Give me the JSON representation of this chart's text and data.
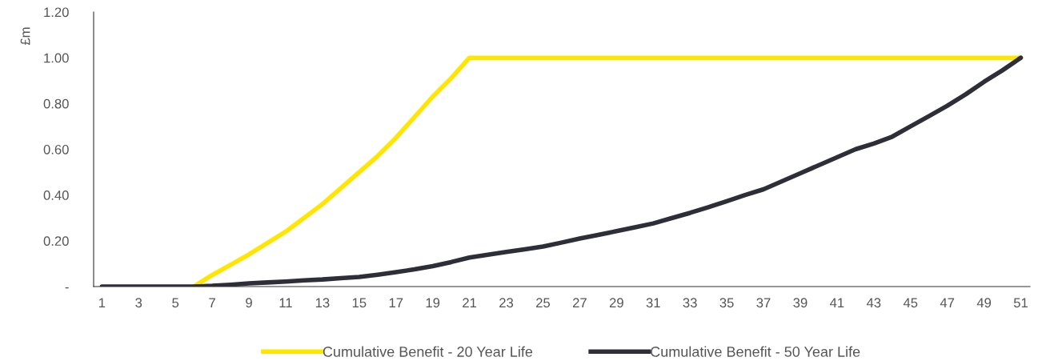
{
  "chart_data": {
    "type": "line",
    "ylabel": "£m",
    "categories": [
      "1",
      null,
      "3",
      null,
      "5",
      null,
      "7",
      null,
      "9",
      null,
      "11",
      null,
      "13",
      null,
      "15",
      null,
      "17",
      null,
      "19",
      null,
      "21",
      null,
      "23",
      null,
      "25",
      null,
      "27",
      null,
      "29",
      null,
      "31",
      null,
      "33",
      null,
      "35",
      null,
      "37",
      null,
      "39",
      null,
      "41",
      null,
      "43",
      null,
      "45",
      null,
      "47",
      null,
      "49",
      null,
      "51"
    ],
    "series": [
      {
        "name": "Cumulative Benefit - 20 Year Life",
        "color": "#ffe600",
        "values": [
          null,
          null,
          null,
          null,
          null,
          0,
          0.05,
          0.095,
          0.14,
          0.19,
          0.24,
          0.3,
          0.36,
          0.43,
          0.5,
          0.57,
          0.65,
          0.74,
          0.83,
          0.91,
          1.0,
          1.0,
          1.0,
          1.0,
          1.0,
          1.0,
          1.0,
          1.0,
          1.0,
          1.0,
          1.0,
          1.0,
          1.0,
          1.0,
          1.0,
          1.0,
          1.0,
          1.0,
          1.0,
          1.0,
          1.0,
          1.0,
          1.0,
          1.0,
          1.0,
          1.0,
          1.0,
          1.0,
          1.0,
          1.0,
          1.0
        ]
      },
      {
        "name": "Cumulative Benefit - 50 Year Life",
        "color": "#2e2e38",
        "values": [
          0,
          0,
          0,
          0,
          0,
          0,
          0.003,
          0.008,
          0.014,
          0.018,
          0.022,
          0.027,
          0.031,
          0.037,
          0.042,
          0.052,
          0.063,
          0.075,
          0.089,
          0.107,
          0.127,
          0.139,
          0.151,
          0.163,
          0.175,
          0.192,
          0.21,
          0.226,
          0.242,
          0.259,
          0.276,
          0.299,
          0.322,
          0.347,
          0.373,
          0.4,
          0.425,
          0.46,
          0.495,
          0.53,
          0.565,
          0.6,
          0.625,
          0.655,
          0.7,
          0.745,
          0.79,
          0.84,
          0.895,
          0.945,
          1.0
        ]
      }
    ],
    "ylim": [
      0,
      1.2
    ],
    "yticks": [
      {
        "value": 0,
        "label": "-"
      },
      {
        "value": 0.2,
        "label": "0.20"
      },
      {
        "value": 0.4,
        "label": "0.40"
      },
      {
        "value": 0.6,
        "label": "0.60"
      },
      {
        "value": 0.8,
        "label": "0.80"
      },
      {
        "value": 1.0,
        "label": "1.00"
      },
      {
        "value": 1.2,
        "label": "1.20"
      }
    ],
    "grid": false,
    "legend": "bottom",
    "marker": "none",
    "line_style": "solid"
  }
}
